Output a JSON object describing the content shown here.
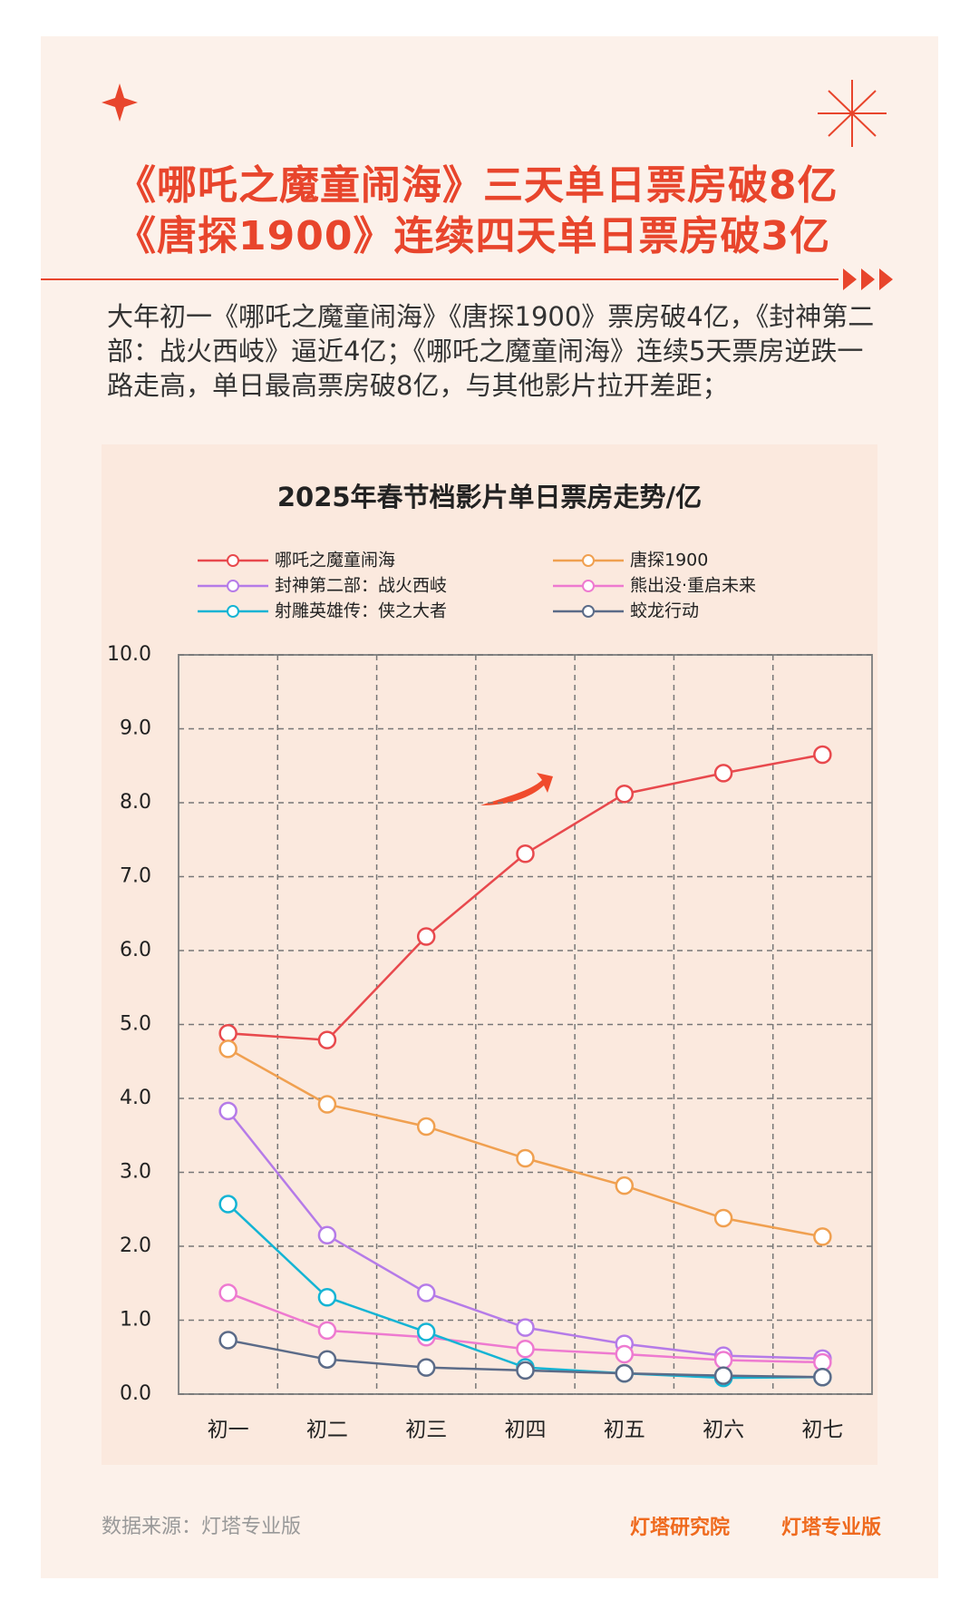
{
  "header": {
    "title_lines": [
      "《哪吒之魔童闹海》三天单日票房破8亿",
      "《唐探1900》连续四天单日票房破3亿"
    ]
  },
  "description": "大年初一《哪吒之魔童闹海》《唐探1900》票房破4亿，《封神第二部：战火西岐》逼近4亿；《哪吒之魔童闹海》连续5天票房逆跌一路走高，单日最高票房破8亿，与其他影片拉开差距；",
  "chart_data": {
    "type": "line",
    "title": "2025年春节档影片单日票房走势/亿",
    "categories": [
      "初一",
      "初二",
      "初三",
      "初四",
      "初五",
      "初六",
      "初七"
    ],
    "series": [
      {
        "name": "哪吒之魔童闹海",
        "color": "#e8494d",
        "values": [
          4.88,
          4.79,
          6.19,
          7.31,
          8.12,
          8.4,
          8.65
        ]
      },
      {
        "name": "唐探1900",
        "color": "#f0a050",
        "values": [
          4.67,
          3.92,
          3.62,
          3.19,
          2.82,
          2.38,
          2.13
        ]
      },
      {
        "name": "封神第二部：战火西岐",
        "color": "#b57be8",
        "values": [
          3.83,
          2.15,
          1.37,
          0.9,
          0.68,
          0.52,
          0.48
        ]
      },
      {
        "name": "熊出没·重启未来",
        "color": "#ee7ad0",
        "values": [
          1.37,
          0.86,
          0.77,
          0.61,
          0.54,
          0.46,
          0.43
        ]
      },
      {
        "name": "射雕英雄传：侠之大者",
        "color": "#14b4d4",
        "values": [
          2.57,
          1.31,
          0.84,
          0.36,
          0.28,
          0.22,
          0.23
        ]
      },
      {
        "name": "蛟龙行动",
        "color": "#5b6b88",
        "values": [
          0.73,
          0.47,
          0.36,
          0.32,
          0.28,
          0.25,
          0.23
        ]
      }
    ],
    "ylim": [
      0,
      10
    ],
    "yticks": [
      {
        "value": 0,
        "label": "0.0"
      },
      {
        "value": 1,
        "label": "1.0"
      },
      {
        "value": 2,
        "label": "2.0"
      },
      {
        "value": 3,
        "label": "3.0"
      },
      {
        "value": 4,
        "label": "4.0"
      },
      {
        "value": 5,
        "label": "5.0"
      },
      {
        "value": 6,
        "label": "6.0"
      },
      {
        "value": 7,
        "label": "7.0"
      },
      {
        "value": 8,
        "label": "8.0"
      },
      {
        "value": 9,
        "label": "9.0"
      },
      {
        "value": 10,
        "label": "10.0"
      }
    ],
    "grid": true
  },
  "footer": {
    "source": "数据来源：灯塔专业版",
    "logos": [
      "灯塔研究院",
      "灯塔专业版"
    ]
  }
}
